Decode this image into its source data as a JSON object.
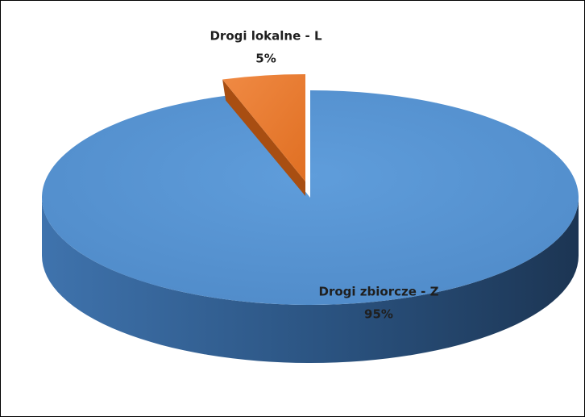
{
  "chart_data": {
    "type": "pie",
    "categories": [
      "Drogi lokalne - L",
      "Drogi zbiorcze - Z"
    ],
    "values": [
      5,
      95
    ],
    "value_labels": [
      "5%",
      "95%"
    ],
    "colors": [
      "#ed7d31",
      "#5b9bd5"
    ]
  }
}
